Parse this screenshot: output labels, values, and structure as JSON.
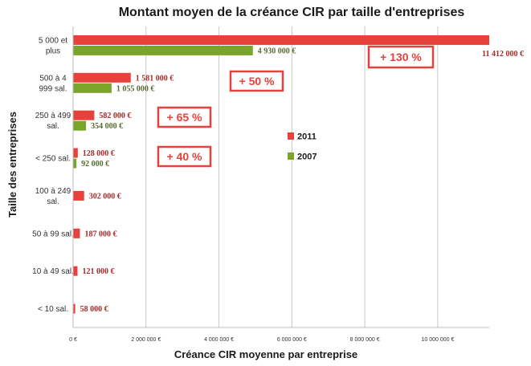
{
  "chart_data": {
    "type": "bar",
    "orientation": "horizontal",
    "title": "Montant moyen de la créance CIR par taille d'entreprises",
    "xlabel": "Créance CIR moyenne par entreprise",
    "ylabel": "Taille des entreprises",
    "xlim": [
      0,
      11412000
    ],
    "x_ticks": [
      0,
      2000000,
      4000000,
      6000000,
      8000000,
      10000000
    ],
    "x_tick_labels": [
      "0 €",
      "2 000 000 €",
      "4 000 000 €",
      "6 000 000 €",
      "8 000 000 €",
      "10 000 000 €"
    ],
    "grid": true,
    "legend_position": "center-right",
    "categories": [
      [
        "5 000 et",
        "plus"
      ],
      [
        "500 à 4",
        "999 sal."
      ],
      [
        "250 à 499",
        "sal."
      ],
      [
        "< 250 sal."
      ],
      [
        "100 à 249",
        "sal."
      ],
      [
        "50 à 99 sal."
      ],
      [
        "10 à 49 sal."
      ],
      [
        "< 10 sal."
      ]
    ],
    "series": [
      {
        "name": "2011",
        "color": "#e8403a",
        "values": [
          11412000,
          1581000,
          582000,
          128000,
          302000,
          187000,
          121000,
          58000
        ],
        "labels": [
          "11 412 000 €",
          "1 581 000 €",
          "582 000 €",
          "128 000 €",
          "302 000 €",
          "187 000 €",
          "121 000 €",
          "58 000 €"
        ]
      },
      {
        "name": "2007",
        "color": "#7aa52a",
        "values": [
          4930000,
          1055000,
          354000,
          92000,
          null,
          null,
          null,
          null
        ],
        "labels": [
          "4 930 000 €",
          "1 055 000 €",
          "354 000 €",
          "92 000 €",
          "",
          "",
          "",
          ""
        ]
      }
    ],
    "annotations": [
      {
        "category_index": 0,
        "text": "+ 130 %"
      },
      {
        "category_index": 1,
        "text": "+ 50 %"
      },
      {
        "category_index": 2,
        "text": "+ 65 %"
      },
      {
        "category_index": 3,
        "text": "+ 40 %"
      }
    ]
  }
}
